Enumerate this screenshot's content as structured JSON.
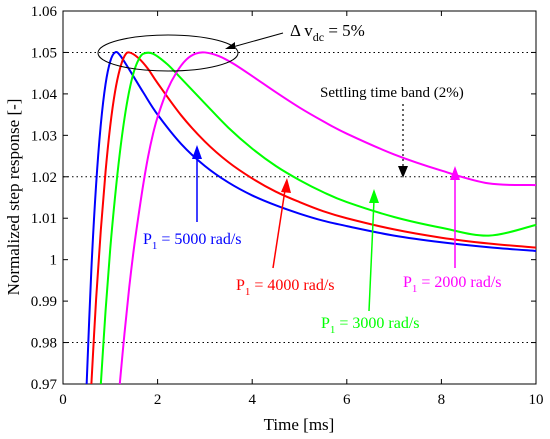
{
  "chart_data": {
    "type": "line",
    "xlabel": "Time [ms]",
    "ylabel": "Normalized step response [-]",
    "xlim": [
      0,
      10
    ],
    "ylim": [
      0.97,
      1.06
    ],
    "xticks": [
      0,
      2,
      4,
      6,
      8,
      10
    ],
    "xtick_labels": [
      "0",
      "2",
      "4",
      "6",
      "8",
      "10"
    ],
    "yticks": [
      0.97,
      0.98,
      0.99,
      1.0,
      1.01,
      1.02,
      1.03,
      1.04,
      1.05,
      1.06
    ],
    "ytick_labels": [
      "0.97",
      "0.98",
      "0.99",
      "1",
      "1.01",
      "1.02",
      "1.03",
      "1.04",
      "1.05",
      "1.06"
    ],
    "grid": false,
    "reference_lines": [
      {
        "y": 1.05,
        "style": "dotted",
        "color": "#000000"
      },
      {
        "y": 1.02,
        "style": "dotted",
        "color": "#000000"
      },
      {
        "y": 0.98,
        "style": "dotted",
        "color": "#000000"
      }
    ],
    "series": [
      {
        "color": "#0000ff",
        "x": [
          0.5,
          0.6,
          0.7,
          0.8,
          0.9,
          1.0,
          1.1,
          1.2,
          1.4,
          1.7,
          2.0,
          2.5,
          3.0,
          3.5,
          4.0,
          4.5,
          5.0,
          5.5,
          6.0,
          7.0,
          8.0,
          9.0,
          10.0
        ],
        "y": [
          0.97,
          0.9977,
          1.0181,
          1.0327,
          1.0424,
          1.0479,
          1.05,
          1.0494,
          1.0459,
          1.0403,
          1.035,
          1.0279,
          1.0226,
          1.0186,
          1.0155,
          1.0131,
          1.0111,
          1.0094,
          1.0081,
          1.0058,
          1.0042,
          1.003,
          1.0021
        ]
      },
      {
        "color": "#ff0000",
        "x": [
          0.6,
          0.7,
          0.8,
          0.9,
          1.0,
          1.1,
          1.2,
          1.3,
          1.4,
          1.6,
          1.8,
          2.0,
          2.5,
          3.0,
          3.5,
          4.0,
          4.5,
          5.0,
          5.5,
          6.0,
          7.0,
          8.0,
          9.0,
          10.0
        ],
        "y": [
          0.97,
          0.9905,
          1.0072,
          1.0213,
          1.0324,
          1.0405,
          1.0459,
          1.0491,
          1.05,
          1.0486,
          1.046,
          1.0426,
          1.0348,
          1.0285,
          1.0235,
          1.0196,
          1.0164,
          1.0139,
          1.0117,
          1.01,
          1.0073,
          1.0053,
          1.0039,
          1.0029
        ]
      },
      {
        "color": "#00ff00",
        "x": [
          0.8,
          0.9,
          1.0,
          1.1,
          1.2,
          1.3,
          1.4,
          1.5,
          1.6,
          1.7,
          1.9,
          2.2,
          2.5,
          3.0,
          3.5,
          4.0,
          4.5,
          5.0,
          5.5,
          6.0,
          7.0,
          8.0,
          9.0,
          10.0
        ],
        "y": [
          0.97,
          0.9877,
          1.0028,
          1.0151,
          1.0256,
          1.0341,
          1.0407,
          1.0454,
          1.0483,
          1.0497,
          1.0497,
          1.0472,
          1.0437,
          1.0377,
          1.0318,
          1.0268,
          1.0226,
          1.0192,
          1.0163,
          1.0139,
          1.0103,
          1.0077,
          1.0058,
          1.0084
        ]
      },
      {
        "color": "#ff00ff",
        "x": [
          1.2,
          1.3,
          1.4,
          1.5,
          1.6,
          1.7,
          1.8,
          1.9,
          2.0,
          2.2,
          2.4,
          2.6,
          2.8,
          3.0,
          3.3,
          3.6,
          4.0,
          4.5,
          5.0,
          5.5,
          6.0,
          7.0,
          8.0,
          9.0,
          10.0
        ],
        "y": [
          0.97,
          0.9822,
          0.9933,
          1.0028,
          1.0109,
          1.0184,
          1.0249,
          1.0302,
          1.0344,
          1.0408,
          1.0452,
          1.0482,
          1.0497,
          1.05,
          1.0491,
          1.0473,
          1.0443,
          1.0404,
          1.0367,
          1.0334,
          1.0304,
          1.0254,
          1.0215,
          1.0184,
          1.018
        ]
      }
    ],
    "annotations": {
      "delta_main": "Δ v",
      "delta_sub": "dc",
      "delta_tail": " = 5%",
      "settling": "Settling time band (2%)",
      "label_prefix": "P",
      "label_sub": "1",
      "labels": [
        " = 5000 rad/s",
        " = 4000 rad/s",
        " = 3000 rad/s",
        " = 2000 rad/s"
      ]
    }
  }
}
